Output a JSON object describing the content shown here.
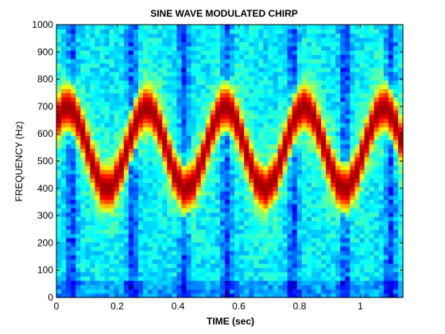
{
  "chart_data": {
    "type": "heatmap",
    "title": "SINE WAVE MODULATED CHIRP",
    "xlabel": "TIME (sec)",
    "ylabel": "FREQUENCY (Hz)",
    "xlim": [
      0,
      1.14
    ],
    "ylim": [
      0,
      1000
    ],
    "xticks": [
      {
        "value": 0,
        "label": "0"
      },
      {
        "value": 0.2,
        "label": "0.2"
      },
      {
        "value": 0.4,
        "label": "0.4"
      },
      {
        "value": 0.6,
        "label": "0.6"
      },
      {
        "value": 0.8,
        "label": "0.8"
      },
      {
        "value": 1.0,
        "label": "1"
      }
    ],
    "yticks": [
      {
        "value": 0,
        "label": "0"
      },
      {
        "value": 100,
        "label": "100"
      },
      {
        "value": 200,
        "label": "200"
      },
      {
        "value": 300,
        "label": "300"
      },
      {
        "value": 400,
        "label": "400"
      },
      {
        "value": 500,
        "label": "500"
      },
      {
        "value": 600,
        "label": "600"
      },
      {
        "value": 700,
        "label": "700"
      },
      {
        "value": 800,
        "label": "800"
      },
      {
        "value": 900,
        "label": "900"
      },
      {
        "value": 1000,
        "label": "1000"
      }
    ],
    "colormap": "jet",
    "instantaneous_frequency_hz": {
      "time_sec": [
        0,
        0.03,
        0.06,
        0.09,
        0.12,
        0.15,
        0.18,
        0.21,
        0.24,
        0.27,
        0.3,
        0.33,
        0.36,
        0.39,
        0.42,
        0.45,
        0.48,
        0.51,
        0.54,
        0.57,
        0.6,
        0.63,
        0.66,
        0.69,
        0.72,
        0.75,
        0.78,
        0.81,
        0.84,
        0.87,
        0.9,
        0.93,
        0.96,
        0.99,
        1.02,
        1.05,
        1.08,
        1.11,
        1.14
      ],
      "freq_hz": [
        650,
        706,
        680,
        592,
        485,
        406,
        399,
        467,
        572,
        668,
        705,
        656,
        554,
        449,
        394,
        415,
        504,
        612,
        694,
        700,
        624,
        515,
        421,
        394,
        442,
        545,
        650,
        706,
        680,
        592,
        485,
        406,
        399,
        467,
        572,
        668,
        705,
        656,
        554
      ]
    },
    "ridge_halfwidth_hz": 55,
    "background_dark_time_sec": [
      0.05,
      0.25,
      0.42,
      0.56,
      0.78,
      0.95,
      1.1
    ]
  }
}
